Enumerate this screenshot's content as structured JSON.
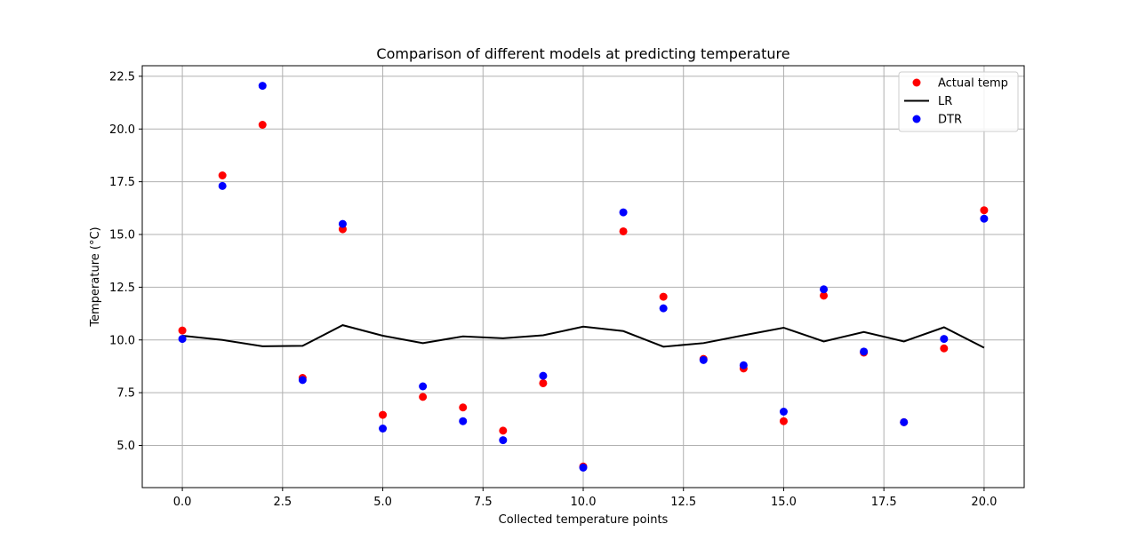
{
  "chart_data": {
    "type": "scatter",
    "title": "Comparison of different models at predicting temperature",
    "xlabel": "Collected temperature points",
    "ylabel": "Temperature (°C)",
    "xlim": [
      -1.0,
      21.0
    ],
    "ylim": [
      3.0,
      23.0
    ],
    "xticks": [
      0.0,
      2.5,
      5.0,
      7.5,
      10.0,
      12.5,
      15.0,
      17.5,
      20.0
    ],
    "xtick_labels": [
      "0.0",
      "2.5",
      "5.0",
      "7.5",
      "10.0",
      "12.5",
      "15.0",
      "17.5",
      "20.0"
    ],
    "yticks": [
      5.0,
      7.5,
      10.0,
      12.5,
      15.0,
      17.5,
      20.0,
      22.5
    ],
    "ytick_labels": [
      "5.0",
      "7.5",
      "10.0",
      "12.5",
      "15.0",
      "17.5",
      "20.0",
      "22.5"
    ],
    "grid": true,
    "legend_position": "top-right",
    "x": [
      0,
      1,
      2,
      3,
      4,
      5,
      6,
      7,
      8,
      9,
      10,
      11,
      12,
      13,
      14,
      15,
      16,
      17,
      18,
      19,
      20
    ],
    "series": [
      {
        "name": "Actual temp",
        "kind": "scatter",
        "color": "#ff0000",
        "values": [
          10.45,
          17.8,
          20.2,
          8.2,
          15.25,
          6.45,
          7.3,
          6.8,
          5.7,
          7.95,
          4.0,
          15.15,
          12.05,
          9.1,
          8.65,
          6.15,
          12.1,
          9.4,
          6.1,
          9.6,
          16.15
        ]
      },
      {
        "name": "LR",
        "kind": "line",
        "color": "#000000",
        "values": [
          10.2,
          10.0,
          9.7,
          9.72,
          10.7,
          10.2,
          9.85,
          10.17,
          10.08,
          10.22,
          10.63,
          10.42,
          9.68,
          9.85,
          10.22,
          10.58,
          9.93,
          10.38,
          9.93,
          10.6,
          9.63
        ]
      },
      {
        "name": "DTR",
        "kind": "scatter",
        "color": "#0000ff",
        "values": [
          10.05,
          17.3,
          22.05,
          8.1,
          15.5,
          5.8,
          7.8,
          6.15,
          5.25,
          8.3,
          3.95,
          16.05,
          11.5,
          9.05,
          8.8,
          6.6,
          12.4,
          9.45,
          6.1,
          10.05,
          15.75
        ]
      }
    ]
  }
}
